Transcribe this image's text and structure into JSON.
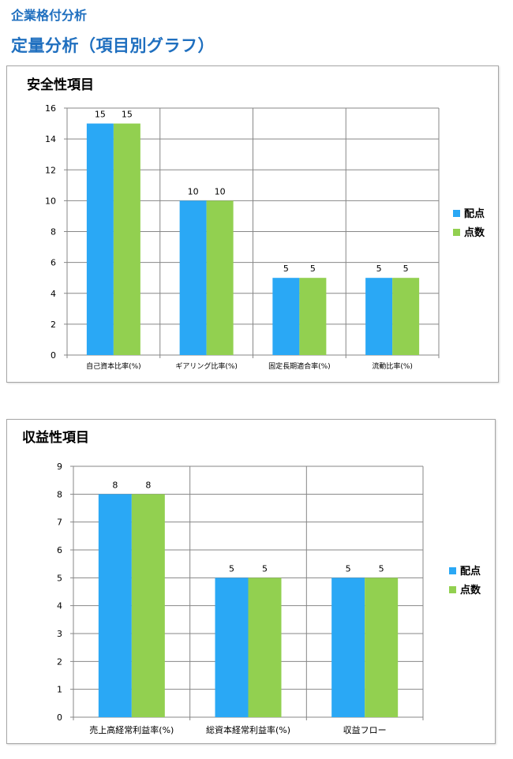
{
  "page": {
    "company_title": "企業格付分析",
    "section_title": "定量分析（項目別グラフ）"
  },
  "colors": {
    "配点": "#2aa8f5",
    "点数": "#92d050",
    "gridline": "#878787"
  },
  "chart_data": [
    {
      "type": "bar",
      "title": "安全性項目",
      "categories": [
        "自己資本比率(%)",
        "ギアリング比率(%)",
        "固定長期適合率(%)",
        "流動比率(%)"
      ],
      "series": [
        {
          "name": "配点",
          "values": [
            15,
            10,
            5,
            5
          ]
        },
        {
          "name": "点数",
          "values": [
            15,
            10,
            5,
            5
          ]
        }
      ],
      "ylim": [
        0,
        16
      ],
      "yticks": [
        0,
        2,
        4,
        6,
        8,
        10,
        12,
        14,
        16
      ],
      "grid": true,
      "legend_position": "right"
    },
    {
      "type": "bar",
      "title": "収益性項目",
      "categories": [
        "売上高経常利益率(%)",
        "総資本経常利益率(%)",
        "収益フロー"
      ],
      "series": [
        {
          "name": "配点",
          "values": [
            8,
            5,
            5
          ]
        },
        {
          "name": "点数",
          "values": [
            8,
            5,
            5
          ]
        }
      ],
      "ylim": [
        0,
        9
      ],
      "yticks": [
        0,
        1,
        2,
        3,
        4,
        5,
        6,
        7,
        8,
        9
      ],
      "grid": true,
      "legend_position": "right"
    }
  ]
}
